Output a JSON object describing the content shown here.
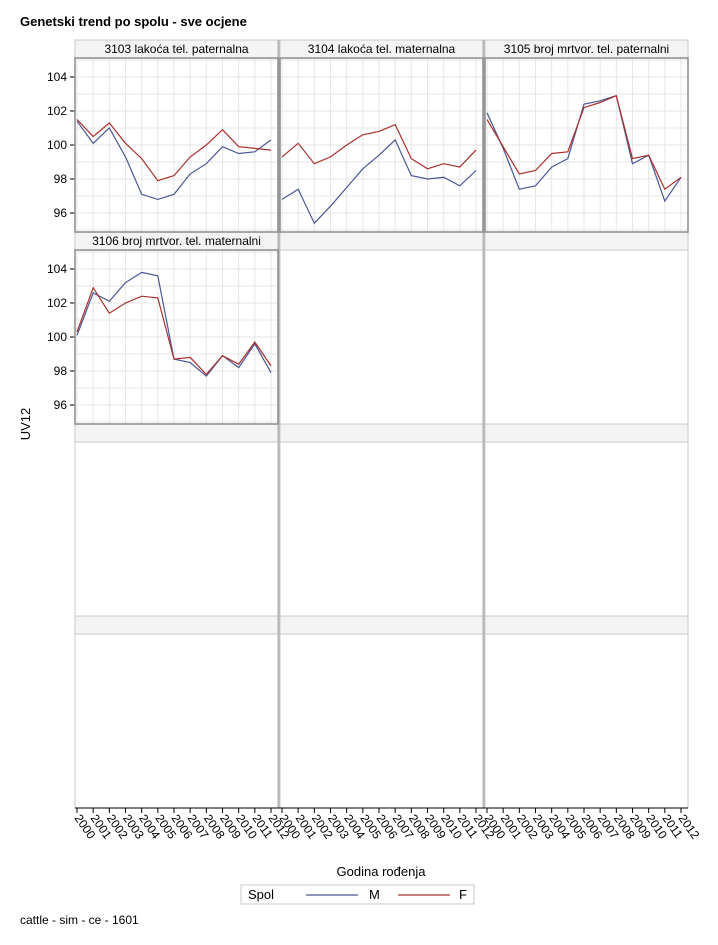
{
  "title": "Genetski trend po spolu - sve ocjene",
  "footnote": "cattle - sim - ce - 1601",
  "colors": {
    "M": "#4a5894",
    "F": "#a8302c",
    "grid": "#e6e6e6",
    "frame": "#8c8c8c"
  },
  "chart_data": {
    "type": "line",
    "xlabel": "Godina rođenja",
    "ylabel": "UV12",
    "x": [
      "2000",
      "2001",
      "2002",
      "2003",
      "2004",
      "2005",
      "2006",
      "2007",
      "2008",
      "2009",
      "2010",
      "2011",
      "2012"
    ],
    "ylim": [
      95,
      105
    ],
    "yticks": [
      96,
      98,
      100,
      102,
      104
    ],
    "grid": true,
    "legend": {
      "title": "Spol",
      "position": "bottom",
      "entries": [
        "M",
        "F"
      ]
    },
    "panels": [
      {
        "title": "3103 lakoća tel. paternalna",
        "series": [
          {
            "name": "M",
            "values": [
              101.4,
              100.1,
              101.0,
              99.3,
              97.1,
              96.8,
              97.1,
              98.3,
              98.9,
              99.9,
              99.5,
              99.6,
              100.3
            ]
          },
          {
            "name": "F",
            "values": [
              101.5,
              100.5,
              101.3,
              100.1,
              99.2,
              97.9,
              98.2,
              99.3,
              100.0,
              100.9,
              99.9,
              99.8,
              99.7
            ]
          }
        ]
      },
      {
        "title": "3104 lakoća tel. maternalna",
        "series": [
          {
            "name": "M",
            "values": [
              96.8,
              97.4,
              95.4,
              96.4,
              97.5,
              98.6,
              99.4,
              100.3,
              98.2,
              98.0,
              98.1,
              97.6,
              98.5
            ]
          },
          {
            "name": "F",
            "values": [
              99.3,
              100.1,
              98.9,
              99.3,
              100.0,
              100.6,
              100.8,
              101.2,
              99.2,
              98.6,
              98.9,
              98.7,
              99.7
            ]
          }
        ]
      },
      {
        "title": "3105 broj mrtvor. tel. paternalni",
        "series": [
          {
            "name": "M",
            "values": [
              101.9,
              99.8,
              97.4,
              97.6,
              98.7,
              99.2,
              102.4,
              102.6,
              102.9,
              98.9,
              99.4,
              96.7,
              98.1
            ]
          },
          {
            "name": "F",
            "values": [
              101.5,
              99.9,
              98.3,
              98.5,
              99.5,
              99.6,
              102.2,
              102.5,
              102.9,
              99.2,
              99.4,
              97.4,
              98.1
            ]
          }
        ]
      },
      {
        "title": "3106 broj mrtvor. tel. maternalni",
        "series": [
          {
            "name": "M",
            "values": [
              100.1,
              102.6,
              102.1,
              103.2,
              103.8,
              103.6,
              98.7,
              98.5,
              97.7,
              98.9,
              98.2,
              99.6,
              97.9
            ]
          },
          {
            "name": "F",
            "values": [
              100.3,
              102.9,
              101.4,
              102.0,
              102.4,
              102.3,
              98.7,
              98.8,
              97.8,
              98.9,
              98.4,
              99.7,
              98.3
            ]
          }
        ]
      }
    ]
  }
}
